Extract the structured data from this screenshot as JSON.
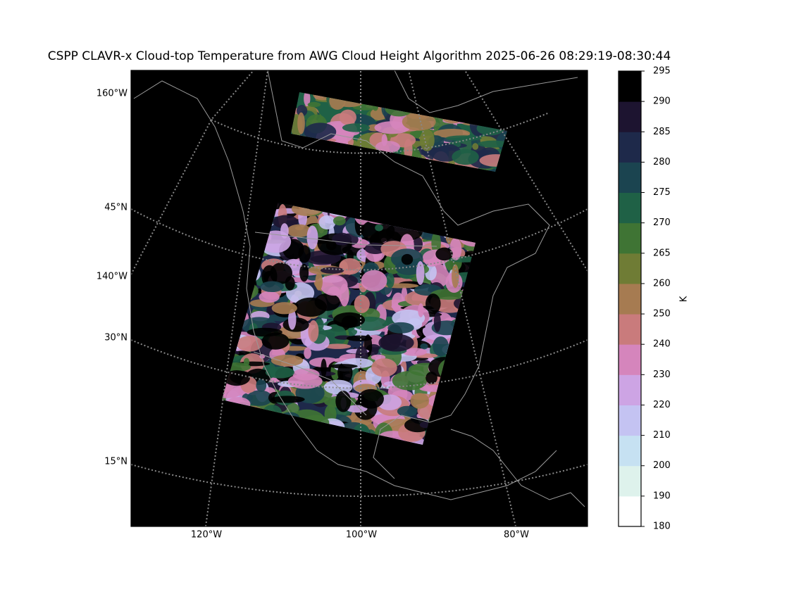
{
  "title": "CSPP CLAVR-x Cloud-top Temperature from AWG Cloud Height Algorithm 2025-06-26 08:29:19-08:30:44",
  "map": {
    "left_labels": [
      "160°W",
      "45°N",
      "140°W",
      "30°N",
      "15°N"
    ],
    "bottom_labels": [
      "120°W",
      "100°W",
      "80°W"
    ]
  },
  "colorbar": {
    "label": "K",
    "ticks": [
      180,
      190,
      200,
      210,
      220,
      230,
      240,
      250,
      260,
      265,
      270,
      275,
      280,
      285,
      290,
      295
    ],
    "colors": [
      "#ffffff",
      "#def2ec",
      "#c6e1f2",
      "#c4c3f2",
      "#cda4e4",
      "#d585bc",
      "#c97b7c",
      "#a67b51",
      "#6f7c35",
      "#3f7434",
      "#1f6146",
      "#1b4450",
      "#1e294a",
      "#1d1430",
      "#000000"
    ]
  }
}
